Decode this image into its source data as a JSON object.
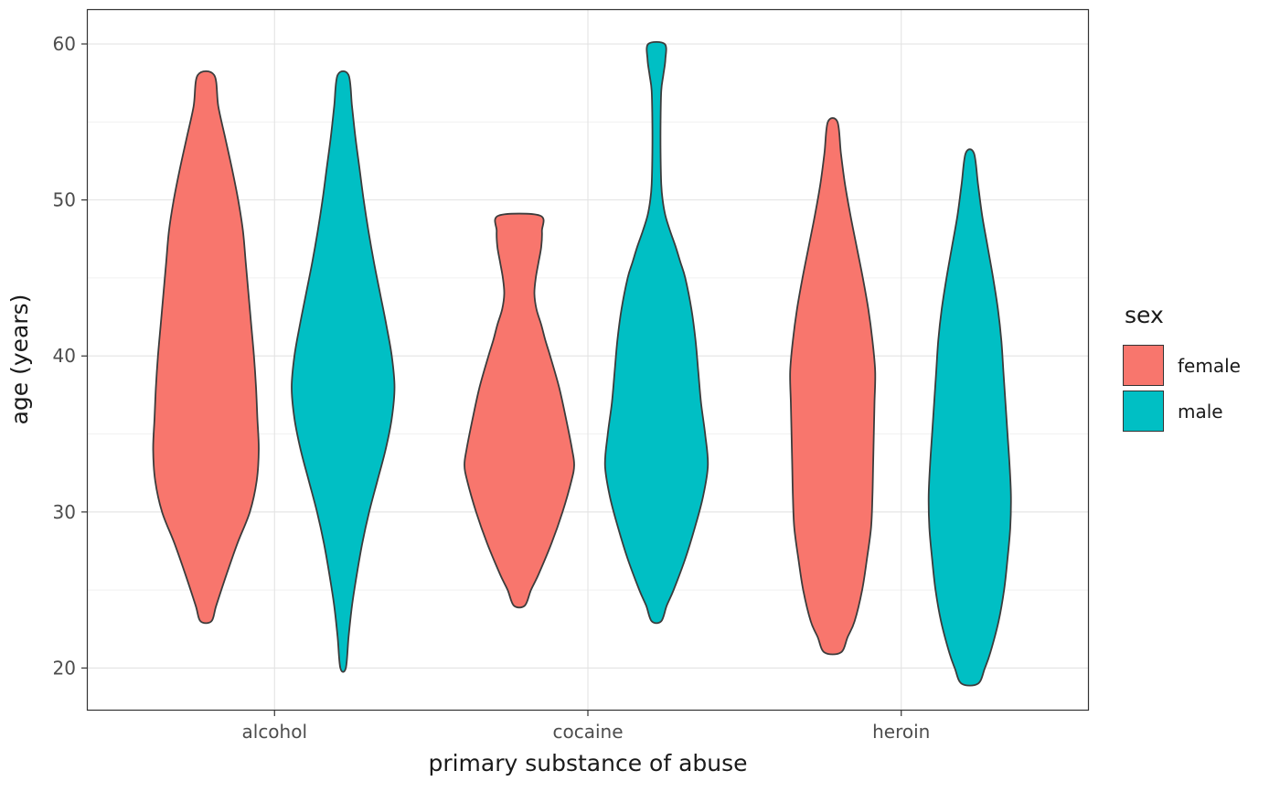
{
  "palette": {
    "female": "#F8766D",
    "male": "#00BFC4",
    "violin_outline": "#3C3C3C",
    "grid_major": "#E3E3E3",
    "grid_minor": "#F1F1F1",
    "panel_border": "#333333",
    "axis_text": "#4D4D4D",
    "title_text": "#1A1A1A",
    "background": "#FFFFFF"
  },
  "legend": {
    "title": "sex",
    "items": [
      {
        "label": "female",
        "color": "#F8766D"
      },
      {
        "label": "male",
        "color": "#00BFC4"
      }
    ]
  },
  "chart_data": {
    "type": "violin",
    "title": "",
    "xlabel": "primary substance of abuse",
    "ylabel": "age (years)",
    "categories": [
      "alcohol",
      "cocaine",
      "heroin"
    ],
    "series_variable": "sex",
    "series": [
      "female",
      "male"
    ],
    "y_ticks": [
      20,
      30,
      40,
      50,
      60
    ],
    "y_minor_ticks": [
      25,
      35,
      45,
      55
    ],
    "ylim": [
      17.3,
      62.2
    ],
    "grid": true,
    "legend_position": "right",
    "violins": [
      {
        "category": "alcohol",
        "sex": "female",
        "color": "#F8766D",
        "age_min": 23,
        "age_max": 58,
        "widest_at": 34,
        "profile": [
          [
            58,
            0.12
          ],
          [
            56,
            0.18
          ],
          [
            54,
            0.28
          ],
          [
            52,
            0.38
          ],
          [
            50,
            0.47
          ],
          [
            48,
            0.54
          ],
          [
            46,
            0.58
          ],
          [
            44,
            0.62
          ],
          [
            42,
            0.66
          ],
          [
            40,
            0.7
          ],
          [
            38,
            0.73
          ],
          [
            36,
            0.75
          ],
          [
            34,
            0.77
          ],
          [
            32,
            0.74
          ],
          [
            30,
            0.64
          ],
          [
            28,
            0.46
          ],
          [
            26,
            0.3
          ],
          [
            24,
            0.15
          ],
          [
            23,
            0.08
          ]
        ]
      },
      {
        "category": "alcohol",
        "sex": "male",
        "color": "#00BFC4",
        "age_min": 20,
        "age_max": 58,
        "widest_at": 38,
        "profile": [
          [
            58,
            0.08
          ],
          [
            56,
            0.13
          ],
          [
            54,
            0.18
          ],
          [
            52,
            0.24
          ],
          [
            50,
            0.3
          ],
          [
            48,
            0.37
          ],
          [
            46,
            0.45
          ],
          [
            44,
            0.54
          ],
          [
            42,
            0.63
          ],
          [
            40,
            0.71
          ],
          [
            38,
            0.75
          ],
          [
            36,
            0.71
          ],
          [
            34,
            0.62
          ],
          [
            32,
            0.5
          ],
          [
            30,
            0.38
          ],
          [
            28,
            0.28
          ],
          [
            26,
            0.2
          ],
          [
            24,
            0.13
          ],
          [
            22,
            0.08
          ],
          [
            20,
            0.04
          ]
        ]
      },
      {
        "category": "cocaine",
        "sex": "female",
        "color": "#F8766D",
        "age_min": 24,
        "age_max": 49,
        "widest_at": 33,
        "profile": [
          [
            49,
            0.3
          ],
          [
            48,
            0.33
          ],
          [
            47,
            0.32
          ],
          [
            46,
            0.28
          ],
          [
            45,
            0.24
          ],
          [
            44,
            0.22
          ],
          [
            43,
            0.25
          ],
          [
            42,
            0.32
          ],
          [
            41,
            0.38
          ],
          [
            40,
            0.45
          ],
          [
            38,
            0.58
          ],
          [
            36,
            0.68
          ],
          [
            34,
            0.77
          ],
          [
            33,
            0.8
          ],
          [
            32,
            0.76
          ],
          [
            30,
            0.63
          ],
          [
            28,
            0.47
          ],
          [
            26,
            0.28
          ],
          [
            25,
            0.17
          ],
          [
            24,
            0.08
          ]
        ]
      },
      {
        "category": "cocaine",
        "sex": "male",
        "color": "#00BFC4",
        "age_min": 23,
        "age_max": 60,
        "widest_at": 33,
        "profile": [
          [
            60,
            0.12
          ],
          [
            59,
            0.13
          ],
          [
            58,
            0.1
          ],
          [
            57,
            0.07
          ],
          [
            55,
            0.06
          ],
          [
            53,
            0.06
          ],
          [
            51,
            0.07
          ],
          [
            50,
            0.09
          ],
          [
            49,
            0.13
          ],
          [
            48,
            0.2
          ],
          [
            47,
            0.28
          ],
          [
            46,
            0.35
          ],
          [
            45,
            0.42
          ],
          [
            43,
            0.51
          ],
          [
            41,
            0.57
          ],
          [
            39,
            0.61
          ],
          [
            37,
            0.65
          ],
          [
            35,
            0.71
          ],
          [
            33,
            0.75
          ],
          [
            31,
            0.68
          ],
          [
            29,
            0.56
          ],
          [
            27,
            0.42
          ],
          [
            25,
            0.25
          ],
          [
            24,
            0.15
          ],
          [
            23,
            0.07
          ]
        ]
      },
      {
        "category": "heroin",
        "sex": "female",
        "color": "#F8766D",
        "age_min": 21,
        "age_max": 55,
        "widest_at": 39,
        "profile": [
          [
            55,
            0.07
          ],
          [
            53,
            0.12
          ],
          [
            51,
            0.18
          ],
          [
            49,
            0.26
          ],
          [
            47,
            0.35
          ],
          [
            45,
            0.44
          ],
          [
            43,
            0.52
          ],
          [
            41,
            0.58
          ],
          [
            39,
            0.62
          ],
          [
            37,
            0.61
          ],
          [
            35,
            0.6
          ],
          [
            33,
            0.59
          ],
          [
            31,
            0.58
          ],
          [
            29,
            0.56
          ],
          [
            27,
            0.5
          ],
          [
            25,
            0.43
          ],
          [
            23,
            0.32
          ],
          [
            22,
            0.22
          ],
          [
            21,
            0.12
          ]
        ]
      },
      {
        "category": "heroin",
        "sex": "male",
        "color": "#00BFC4",
        "age_min": 19,
        "age_max": 53,
        "widest_at": 31,
        "profile": [
          [
            53,
            0.06
          ],
          [
            51,
            0.12
          ],
          [
            49,
            0.18
          ],
          [
            47,
            0.26
          ],
          [
            45,
            0.34
          ],
          [
            43,
            0.41
          ],
          [
            41,
            0.46
          ],
          [
            39,
            0.49
          ],
          [
            37,
            0.52
          ],
          [
            35,
            0.55
          ],
          [
            33,
            0.58
          ],
          [
            31,
            0.6
          ],
          [
            29,
            0.59
          ],
          [
            27,
            0.55
          ],
          [
            25,
            0.5
          ],
          [
            23,
            0.42
          ],
          [
            21,
            0.3
          ],
          [
            20,
            0.22
          ],
          [
            19,
            0.12
          ]
        ]
      }
    ]
  }
}
